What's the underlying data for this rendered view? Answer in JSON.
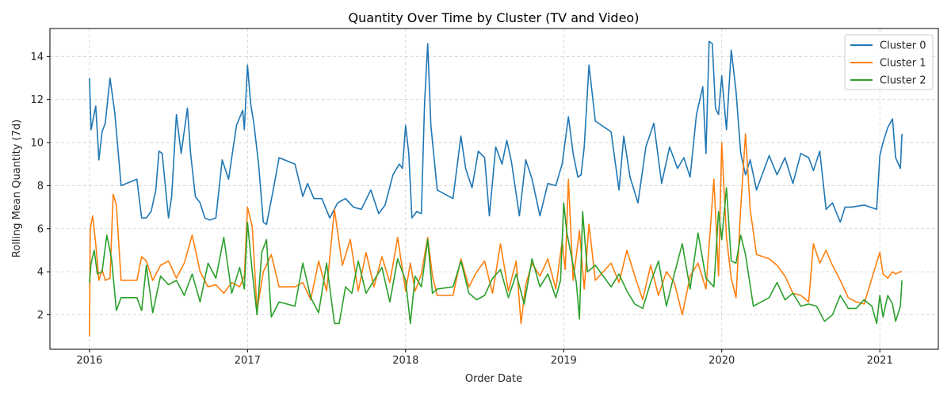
{
  "chart_data": {
    "type": "line",
    "title": "Quantity Over Time by Cluster (TV and Video)",
    "xlabel": "Order Date",
    "ylabel": "Rolling Mean Quantity (7d)",
    "xlim": [
      2015.75,
      2021.37
    ],
    "ylim": [
      0.4,
      15.3
    ],
    "xticks": [
      2016,
      2017,
      2018,
      2019,
      2020,
      2021
    ],
    "xtick_labels": [
      "2016",
      "2017",
      "2018",
      "2019",
      "2020",
      "2021"
    ],
    "yticks": [
      2,
      4,
      6,
      8,
      10,
      12,
      14
    ],
    "ytick_labels": [
      "2",
      "4",
      "6",
      "8",
      "10",
      "12",
      "14"
    ],
    "grid": true,
    "legend_position": "top-right",
    "series": [
      {
        "name": "Cluster 0",
        "color": "#1f77b4",
        "x": [
          2016.0,
          2016.01,
          2016.04,
          2016.06,
          2016.08,
          2016.1,
          2016.13,
          2016.16,
          2016.2,
          2016.3,
          2016.33,
          2016.36,
          2016.39,
          2016.42,
          2016.44,
          2016.46,
          2016.5,
          2016.52,
          2016.55,
          2016.58,
          2016.62,
          2016.64,
          2016.67,
          2016.7,
          2016.73,
          2016.76,
          2016.8,
          2016.84,
          2016.88,
          2016.93,
          2016.97,
          2016.98,
          2017.0,
          2017.02,
          2017.04,
          2017.07,
          2017.1,
          2017.12,
          2017.16,
          2017.2,
          2017.3,
          2017.35,
          2017.38,
          2017.42,
          2017.47,
          2017.52,
          2017.57,
          2017.62,
          2017.67,
          2017.72,
          2017.78,
          2017.83,
          2017.87,
          2017.92,
          2017.96,
          2017.98,
          2018.0,
          2018.02,
          2018.04,
          2018.07,
          2018.1,
          2018.12,
          2018.14,
          2018.16,
          2018.2,
          2018.3,
          2018.35,
          2018.38,
          2018.42,
          2018.46,
          2018.5,
          2018.53,
          2018.57,
          2018.61,
          2018.64,
          2018.67,
          2018.72,
          2018.76,
          2018.8,
          2018.85,
          2018.9,
          2018.95,
          2018.99,
          2019.01,
          2019.03,
          2019.06,
          2019.09,
          2019.11,
          2019.13,
          2019.16,
          2019.2,
          2019.3,
          2019.35,
          2019.38,
          2019.42,
          2019.47,
          2019.52,
          2019.57,
          2019.62,
          2019.67,
          2019.72,
          2019.76,
          2019.8,
          2019.84,
          2019.88,
          2019.9,
          2019.92,
          2019.94,
          2019.96,
          2019.98,
          2020.0,
          2020.03,
          2020.06,
          2020.09,
          2020.12,
          2020.15,
          2020.18,
          2020.22,
          2020.3,
          2020.35,
          2020.4,
          2020.45,
          2020.5,
          2020.55,
          2020.58,
          2020.62,
          2020.66,
          2020.7,
          2020.75,
          2020.78,
          2020.82,
          2020.9,
          2020.98,
          2021.0,
          2021.02,
          2021.05,
          2021.08,
          2021.1,
          2021.13,
          2021.14
        ],
        "values": [
          13.0,
          10.6,
          11.7,
          9.2,
          10.5,
          10.9,
          13.0,
          11.4,
          8.0,
          8.3,
          6.5,
          6.5,
          6.8,
          7.8,
          9.6,
          9.5,
          6.5,
          7.5,
          11.3,
          9.5,
          11.6,
          9.5,
          7.5,
          7.2,
          6.5,
          6.4,
          6.5,
          9.2,
          8.3,
          10.8,
          11.5,
          10.6,
          13.6,
          11.8,
          10.9,
          9.0,
          6.3,
          6.2,
          7.7,
          9.3,
          9.0,
          7.5,
          8.1,
          7.4,
          7.4,
          6.5,
          7.2,
          7.4,
          7.0,
          6.9,
          7.8,
          6.7,
          7.1,
          8.5,
          9.0,
          8.8,
          10.8,
          9.5,
          6.5,
          6.8,
          6.7,
          11.8,
          14.6,
          10.8,
          7.8,
          7.4,
          10.3,
          8.8,
          7.9,
          9.6,
          9.3,
          6.6,
          9.8,
          9.0,
          10.1,
          9.1,
          6.6,
          9.2,
          8.3,
          6.6,
          8.1,
          8.0,
          9.0,
          10.1,
          11.2,
          9.5,
          8.4,
          8.5,
          9.8,
          13.6,
          11.0,
          10.5,
          7.8,
          10.3,
          8.4,
          7.2,
          9.8,
          10.9,
          8.1,
          9.8,
          8.8,
          9.3,
          8.4,
          11.3,
          12.6,
          9.5,
          14.7,
          14.6,
          11.6,
          11.3,
          13.1,
          10.6,
          14.3,
          12.4,
          9.5,
          8.5,
          9.2,
          7.8,
          9.4,
          8.5,
          9.3,
          8.1,
          9.5,
          9.3,
          8.7,
          9.6,
          6.9,
          7.2,
          6.3,
          7.0,
          7.0,
          7.1,
          6.9,
          9.4,
          10.0,
          10.7,
          11.1,
          9.3,
          8.8,
          10.4
        ]
      },
      {
        "name": "Cluster 1",
        "color": "#ff7f0e",
        "x": [
          2016.0,
          2016.005,
          2016.02,
          2016.04,
          2016.06,
          2016.08,
          2016.1,
          2016.13,
          2016.15,
          2016.17,
          2016.2,
          2016.3,
          2016.33,
          2016.36,
          2016.4,
          2016.45,
          2016.5,
          2016.55,
          2016.6,
          2016.65,
          2016.7,
          2016.75,
          2016.8,
          2016.85,
          2016.9,
          2016.95,
          2016.98,
          2017.0,
          2017.03,
          2017.06,
          2017.1,
          2017.15,
          2017.2,
          2017.3,
          2017.35,
          2017.4,
          2017.45,
          2017.5,
          2017.55,
          2017.6,
          2017.65,
          2017.7,
          2017.75,
          2017.8,
          2017.85,
          2017.9,
          2017.95,
          2018.0,
          2018.03,
          2018.06,
          2018.1,
          2018.14,
          2018.17,
          2018.2,
          2018.3,
          2018.35,
          2018.4,
          2018.45,
          2018.5,
          2018.55,
          2018.6,
          2018.65,
          2018.7,
          2018.73,
          2018.76,
          2018.8,
          2018.85,
          2018.9,
          2018.95,
          2018.99,
          2019.01,
          2019.03,
          2019.06,
          2019.1,
          2019.13,
          2019.16,
          2019.2,
          2019.3,
          2019.35,
          2019.4,
          2019.45,
          2019.5,
          2019.55,
          2019.6,
          2019.65,
          2019.7,
          2019.75,
          2019.8,
          2019.85,
          2019.9,
          2019.95,
          2019.98,
          2020.0,
          2020.03,
          2020.06,
          2020.09,
          2020.12,
          2020.15,
          2020.18,
          2020.22,
          2020.3,
          2020.35,
          2020.4,
          2020.45,
          2020.5,
          2020.55,
          2020.58,
          2020.62,
          2020.66,
          2020.7,
          2020.75,
          2020.8,
          2020.85,
          2020.9,
          2020.95,
          2021.0,
          2021.02,
          2021.05,
          2021.08,
          2021.1,
          2021.13,
          2021.14
        ],
        "values": [
          1.0,
          6.0,
          6.6,
          5.3,
          3.6,
          4.1,
          3.6,
          3.7,
          7.6,
          7.1,
          3.6,
          3.6,
          4.7,
          4.5,
          3.6,
          4.3,
          4.5,
          3.7,
          4.4,
          5.7,
          4.0,
          3.3,
          3.4,
          3.0,
          3.5,
          3.3,
          3.8,
          7.0,
          6.1,
          2.2,
          4.0,
          4.8,
          3.3,
          3.3,
          3.5,
          2.7,
          4.5,
          3.1,
          6.9,
          4.3,
          5.5,
          3.1,
          4.9,
          3.3,
          4.7,
          3.5,
          5.6,
          3.1,
          4.4,
          3.1,
          3.9,
          5.6,
          3.8,
          2.9,
          2.9,
          4.6,
          3.3,
          4.0,
          4.5,
          3.0,
          5.3,
          3.1,
          4.5,
          1.6,
          3.4,
          4.4,
          3.8,
          4.6,
          3.2,
          5.4,
          4.1,
          8.3,
          3.6,
          5.9,
          3.2,
          6.2,
          3.6,
          4.4,
          3.5,
          5.0,
          3.8,
          2.7,
          4.3,
          2.9,
          4.0,
          3.5,
          2.0,
          3.8,
          4.4,
          3.2,
          8.3,
          3.8,
          10.0,
          5.6,
          3.7,
          2.8,
          7.0,
          10.4,
          6.9,
          4.8,
          4.6,
          4.3,
          3.8,
          3.0,
          2.9,
          2.6,
          5.3,
          4.4,
          5.0,
          4.3,
          3.6,
          2.8,
          2.6,
          2.5,
          3.7,
          4.9,
          3.9,
          3.7,
          4.0,
          3.9,
          4.0,
          4.0
        ]
      },
      {
        "name": "Cluster 2",
        "color": "#2ca02c",
        "x": [
          2016.0,
          2016.01,
          2016.03,
          2016.05,
          2016.08,
          2016.11,
          2016.14,
          2016.17,
          2016.2,
          2016.3,
          2016.33,
          2016.36,
          2016.4,
          2016.45,
          2016.5,
          2016.55,
          2016.6,
          2016.65,
          2016.7,
          2016.75,
          2016.8,
          2016.85,
          2016.9,
          2016.95,
          2016.98,
          2017.0,
          2017.03,
          2017.06,
          2017.09,
          2017.12,
          2017.15,
          2017.2,
          2017.3,
          2017.35,
          2017.4,
          2017.45,
          2017.5,
          2017.55,
          2017.58,
          2017.62,
          2017.66,
          2017.7,
          2017.75,
          2017.8,
          2017.85,
          2017.9,
          2017.95,
          2018.0,
          2018.03,
          2018.06,
          2018.1,
          2018.14,
          2018.17,
          2018.2,
          2018.3,
          2018.35,
          2018.4,
          2018.45,
          2018.5,
          2018.55,
          2018.6,
          2018.65,
          2018.7,
          2018.75,
          2018.8,
          2018.85,
          2018.9,
          2018.95,
          2018.98,
          2019.0,
          2019.02,
          2019.05,
          2019.08,
          2019.1,
          2019.12,
          2019.15,
          2019.2,
          2019.3,
          2019.35,
          2019.4,
          2019.45,
          2019.5,
          2019.55,
          2019.6,
          2019.65,
          2019.7,
          2019.75,
          2019.8,
          2019.85,
          2019.9,
          2019.95,
          2019.98,
          2020.0,
          2020.03,
          2020.06,
          2020.09,
          2020.12,
          2020.15,
          2020.2,
          2020.3,
          2020.35,
          2020.4,
          2020.45,
          2020.5,
          2020.55,
          2020.6,
          2020.65,
          2020.7,
          2020.75,
          2020.8,
          2020.85,
          2020.9,
          2020.95,
          2020.98,
          2021.0,
          2021.02,
          2021.05,
          2021.08,
          2021.1,
          2021.13,
          2021.14
        ],
        "values": [
          3.5,
          4.4,
          5.0,
          3.9,
          4.0,
          5.7,
          4.6,
          2.2,
          2.8,
          2.8,
          2.2,
          4.3,
          2.1,
          3.8,
          3.4,
          3.6,
          2.9,
          3.9,
          2.6,
          4.4,
          3.7,
          5.6,
          3.0,
          4.2,
          3.2,
          6.3,
          4.0,
          2.0,
          4.9,
          5.5,
          1.9,
          2.6,
          2.4,
          4.4,
          2.8,
          2.1,
          4.4,
          1.6,
          1.6,
          3.3,
          3.0,
          4.5,
          3.0,
          3.6,
          4.2,
          2.6,
          4.6,
          3.6,
          1.6,
          3.8,
          3.3,
          5.5,
          3.0,
          3.2,
          3.3,
          4.5,
          3.0,
          2.7,
          2.9,
          3.7,
          4.1,
          2.8,
          3.9,
          2.5,
          4.6,
          3.3,
          3.9,
          2.8,
          3.6,
          7.2,
          5.8,
          4.7,
          3.5,
          1.8,
          6.8,
          4.0,
          4.3,
          3.3,
          3.9,
          3.1,
          2.5,
          2.3,
          3.5,
          4.5,
          2.4,
          3.9,
          5.3,
          3.2,
          5.8,
          3.7,
          3.3,
          6.8,
          5.5,
          7.9,
          4.5,
          4.4,
          5.7,
          4.8,
          2.4,
          2.8,
          3.5,
          2.7,
          3.0,
          2.4,
          2.5,
          2.4,
          1.7,
          2.0,
          2.9,
          2.3,
          2.3,
          2.7,
          2.4,
          1.6,
          2.9,
          1.9,
          2.9,
          2.5,
          1.7,
          2.4,
          3.6
        ]
      }
    ]
  }
}
